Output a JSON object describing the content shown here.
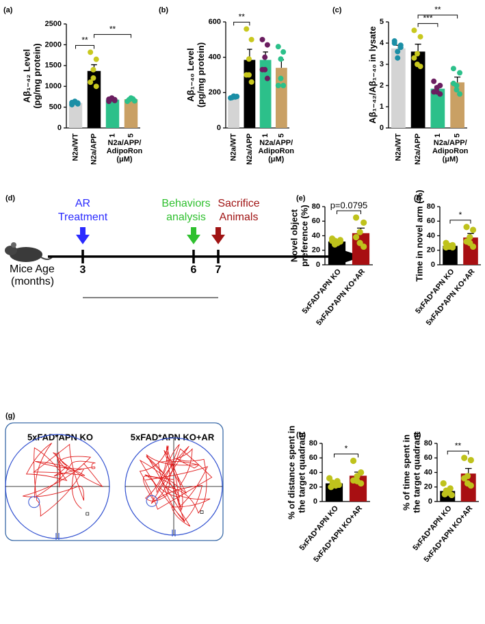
{
  "chart_data": [
    {
      "type": "bar",
      "label": "(a)",
      "ylabel": [
        "Aβ₁₋₄₂ Level",
        "(pg/mg protein)"
      ],
      "categories": [
        "N2a/WT",
        "N2a/APP",
        "1",
        "5"
      ],
      "group_label": [
        "N2a/APP/",
        "AdipoRon",
        "(μM)"
      ],
      "ylim": [
        0,
        2500
      ],
      "yticks": [
        0,
        500,
        1000,
        1500,
        2000,
        2500
      ],
      "values": [
        600,
        1370,
        680,
        690
      ],
      "errors": [
        30,
        150,
        25,
        30
      ],
      "colors": [
        "#d4d4d4",
        "#000000",
        "#2cc08a",
        "#c9a064"
      ],
      "point_colors": [
        "#1b8fa6",
        "#c8c81e",
        "#6a1e60",
        "#2cc08a"
      ],
      "points": [
        [
          560,
          600,
          640,
          620,
          580,
          610
        ],
        [
          1820,
          1650,
          1400,
          1200,
          1000,
          1100
        ],
        [
          640,
          680,
          700,
          720,
          660,
          690
        ],
        [
          640,
          700,
          720,
          680,
          650
        ]
      ],
      "annotations": [
        {
          "text": "**",
          "between": [
            "N2a/WT",
            "N2a/APP"
          ]
        },
        {
          "text": "**",
          "between": [
            "N2a/APP",
            "5"
          ]
        }
      ]
    },
    {
      "type": "bar",
      "label": "(b)",
      "ylabel": [
        "Aβ₁₋₄₀ Level",
        "(pg/mg protein)"
      ],
      "categories": [
        "N2a/WT",
        "N2a/APP",
        "1",
        "5"
      ],
      "group_label": [
        "N2a/APP/",
        "AdipoRon",
        "(μM)"
      ],
      "ylim": [
        0,
        600
      ],
      "yticks": [
        0,
        200,
        400,
        600
      ],
      "values": [
        175,
        385,
        385,
        340
      ],
      "errors": [
        8,
        60,
        45,
        45
      ],
      "colors": [
        "#d4d4d4",
        "#000000",
        "#2cc08a",
        "#c9a064"
      ],
      "point_colors": [
        "#1b8fa6",
        "#c8c81e",
        "#6a1e60",
        "#2cc08a"
      ],
      "points": [
        [
          170,
          175,
          180,
          172,
          178
        ],
        [
          560,
          500,
          390,
          300,
          260,
          300
        ],
        [
          500,
          470,
          400,
          330,
          280,
          330
        ],
        [
          460,
          430,
          390,
          280,
          240,
          240
        ]
      ],
      "annotations": [
        {
          "text": "**",
          "between": [
            "N2a/WT",
            "N2a/APP"
          ]
        }
      ]
    },
    {
      "type": "bar",
      "label": "(c)",
      "ylabel": [
        "Aβ₁₋₄₂/Aβ₁₋₄₀ in lysate"
      ],
      "categories": [
        "N2a/WT",
        "N2a/APP",
        "1",
        "5"
      ],
      "group_label": [
        "N2a/APP/",
        "AdipoRon",
        "(μM)"
      ],
      "ylim": [
        0,
        5
      ],
      "yticks": [
        0,
        1,
        2,
        3,
        4,
        5
      ],
      "values": [
        3.75,
        3.6,
        1.85,
        2.15
      ],
      "errors": [
        0.15,
        0.35,
        0.12,
        0.25
      ],
      "colors": [
        "#d4d4d4",
        "#000000",
        "#2cc08a",
        "#c9a064"
      ],
      "point_colors": [
        "#1b8fa6",
        "#c8c81e",
        "#6a1e60",
        "#2cc08a"
      ],
      "points": [
        [
          4.1,
          3.8,
          3.6,
          3.3,
          3.9,
          4.0
        ],
        [
          4.6,
          4.3,
          3.5,
          3.0,
          2.9,
          3.3
        ],
        [
          2.2,
          2.0,
          1.9,
          1.7,
          1.6,
          1.7
        ],
        [
          2.8,
          2.6,
          2.0,
          1.8,
          1.6,
          2.1
        ]
      ],
      "annotations": [
        {
          "text": "***",
          "between": [
            "N2a/APP",
            "1"
          ]
        },
        {
          "text": "**",
          "between": [
            "N2a/APP",
            "5"
          ]
        }
      ]
    },
    {
      "type": "bar",
      "label": "(e)",
      "ylabel": [
        "Novel object",
        "preference (%)"
      ],
      "categories": [
        "5xFAD*APN KO",
        "5xFAD*APN KO+AR"
      ],
      "ylim": [
        0,
        80
      ],
      "yticks": [
        0,
        20,
        40,
        60,
        80
      ],
      "values": [
        32,
        43.5
      ],
      "errors": [
        2,
        7
      ],
      "colors": [
        "#000000",
        "#a80f12"
      ],
      "point_colors": [
        "#bfc21c",
        "#bfc21c"
      ],
      "points": [
        [
          36,
          34,
          33,
          31,
          30,
          28,
          32,
          33
        ],
        [
          65,
          58,
          45,
          30,
          25,
          38
        ]
      ],
      "annotations": [
        {
          "text": "p=0.0795",
          "between": [
            "5xFAD*APN KO",
            "5xFAD*APN KO+AR"
          ]
        }
      ]
    },
    {
      "type": "bar",
      "label": "(f)",
      "ylabel": [
        "Time in novel arm (%)"
      ],
      "categories": [
        "5xFAD*APN KO",
        "5xFAD*APN KO+AR"
      ],
      "ylim": [
        0,
        80
      ],
      "yticks": [
        0,
        20,
        40,
        60,
        80
      ],
      "values": [
        26,
        37.5
      ],
      "errors": [
        1.5,
        5.5
      ],
      "colors": [
        "#000000",
        "#a80f12"
      ],
      "point_colors": [
        "#bfc21c",
        "#bfc21c"
      ],
      "points": [
        [
          30,
          27,
          26,
          25,
          24,
          24
        ],
        [
          52,
          48,
          38,
          30,
          25,
          32
        ]
      ],
      "annotations": [
        {
          "text": "*",
          "between": [
            "5xFAD*APN KO",
            "5xFAD*APN KO+AR"
          ]
        }
      ]
    },
    {
      "type": "bar",
      "label": "(h)",
      "ylabel": [
        "% of distance spent in",
        "the target quadrant"
      ],
      "categories": [
        "5xFAD*APN KO",
        "5xFAD*APN KO+AR"
      ],
      "ylim": [
        0,
        80
      ],
      "yticks": [
        0,
        20,
        40,
        60,
        80
      ],
      "values": [
        25,
        35.5
      ],
      "errors": [
        2,
        5
      ],
      "colors": [
        "#000000",
        "#a80f12"
      ],
      "point_colors": [
        "#bfc21c",
        "#bfc21c"
      ],
      "points": [
        [
          32,
          28,
          26,
          24,
          22,
          20,
          23
        ],
        [
          56,
          40,
          35,
          28,
          25,
          29
        ]
      ],
      "annotations": [
        {
          "text": "*",
          "between": [
            "5xFAD*APN KO",
            "5xFAD*APN KO+AR"
          ]
        }
      ]
    },
    {
      "type": "bar",
      "label": "(i)",
      "ylabel": [
        "% of time spent in",
        "the target quadrant"
      ],
      "categories": [
        "5xFAD*APN KO",
        "5xFAD*APN KO+AR"
      ],
      "ylim": [
        0,
        80
      ],
      "yticks": [
        0,
        20,
        40,
        60,
        80
      ],
      "values": [
        14.5,
        38.5
      ],
      "errors": [
        2.5,
        7
      ],
      "colors": [
        "#000000",
        "#a80f12"
      ],
      "point_colors": [
        "#bfc21c",
        "#bfc21c"
      ],
      "points": [
        [
          25,
          18,
          15,
          13,
          12,
          10,
          9
        ],
        [
          60,
          57,
          35,
          25,
          22,
          32
        ]
      ],
      "annotations": [
        {
          "text": "**",
          "between": [
            "5xFAD*APN KO",
            "5xFAD*APN KO+AR"
          ]
        }
      ]
    }
  ],
  "timeline": {
    "label": "(d)",
    "axis_label": [
      "Mice Age",
      "(months)"
    ],
    "ticks": [
      "3",
      "6",
      "7"
    ],
    "events": [
      [
        "AR",
        "Treatment"
      ],
      [
        "Behaviors",
        "analysis"
      ],
      [
        "Sacrifice",
        "Animals"
      ]
    ]
  },
  "maze": {
    "label": "(g)",
    "titles": [
      "5xFAD*APN KO",
      "5xFAD*APN KO+AR"
    ]
  }
}
